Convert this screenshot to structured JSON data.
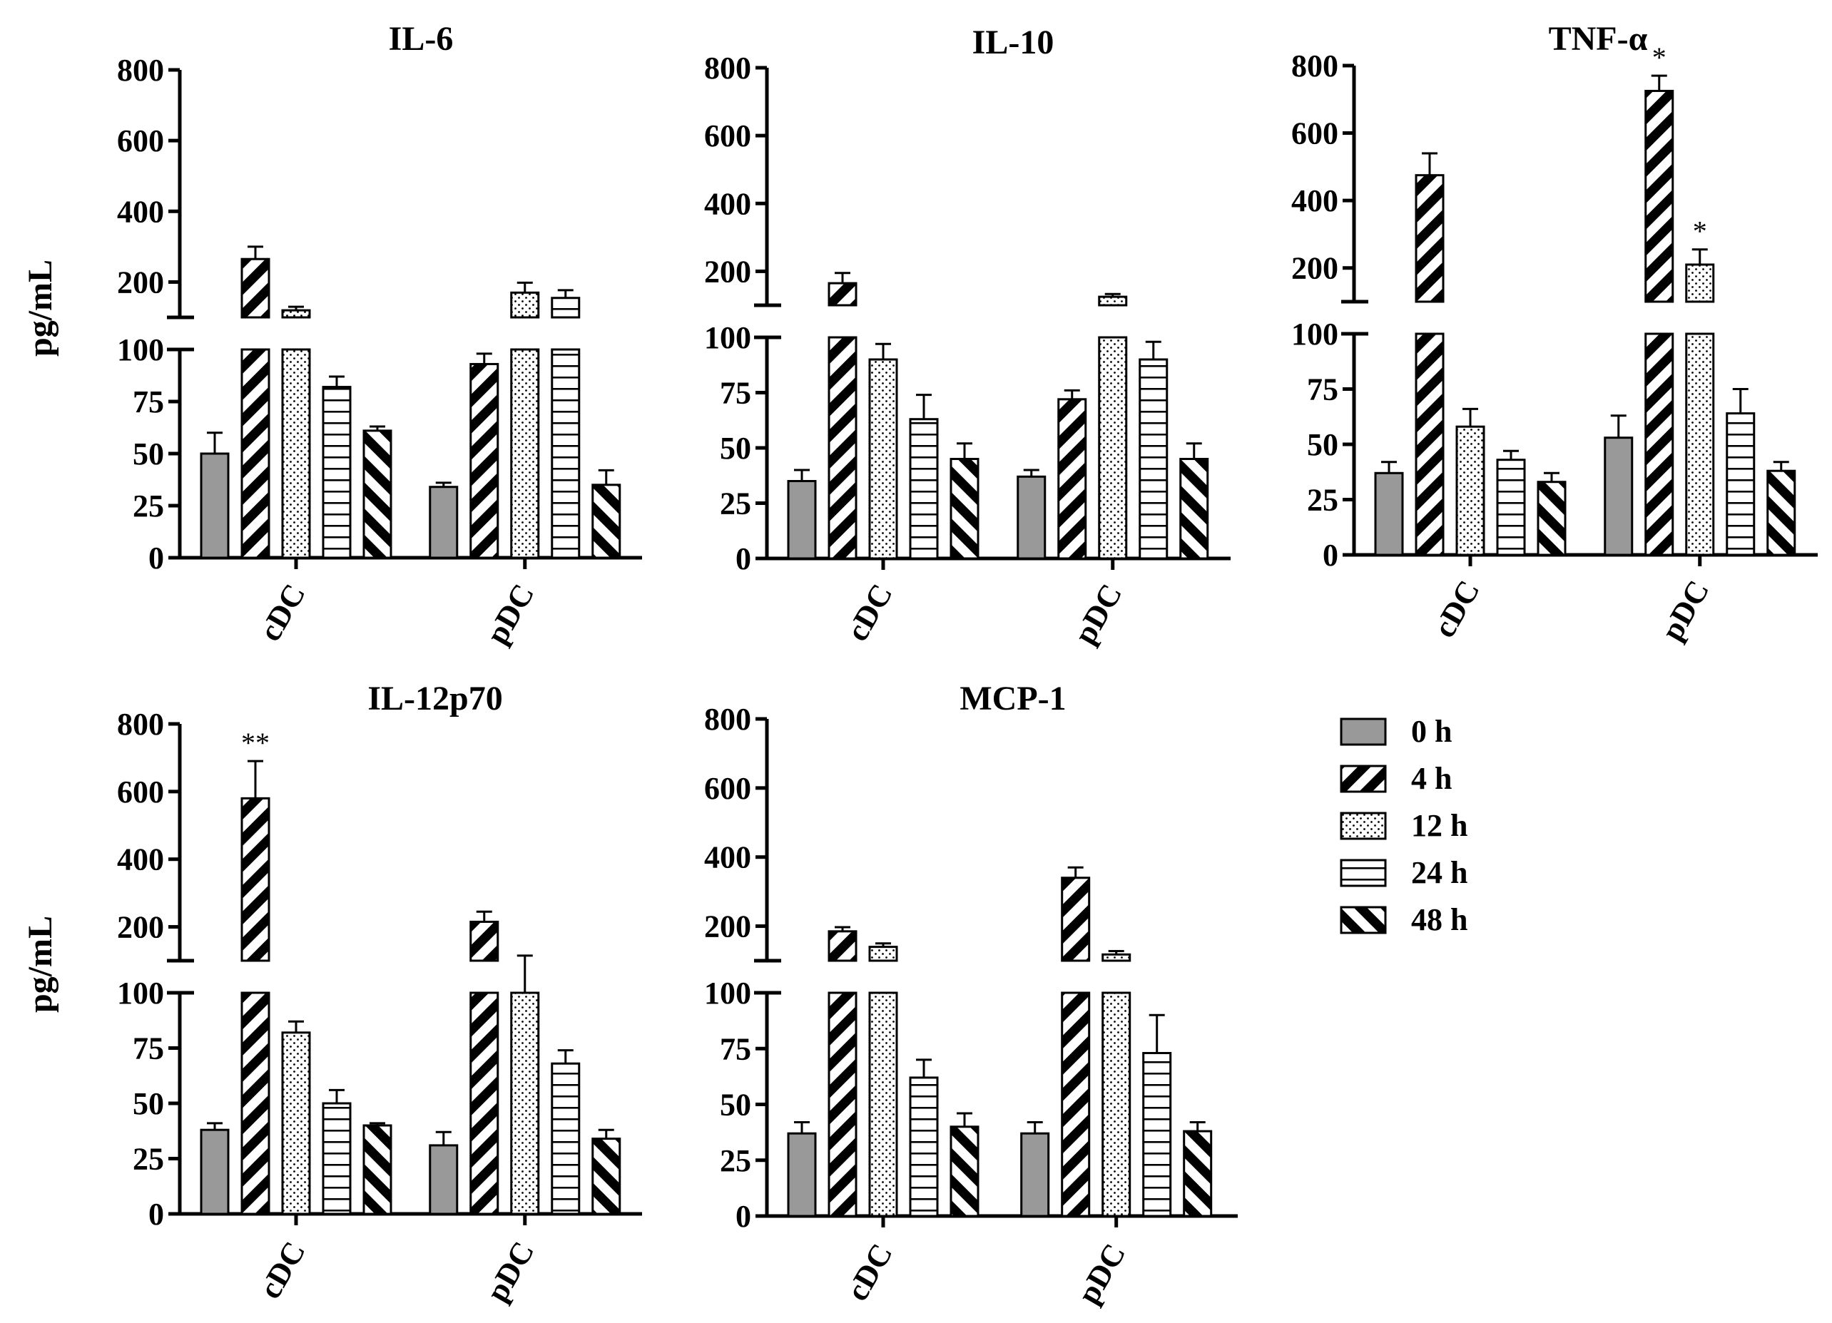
{
  "ylabel": "pg/mL",
  "colors": {
    "bar_0h": "#999999",
    "axis": "#000000",
    "background": "#ffffff"
  },
  "legend": [
    {
      "label": "0 h",
      "pattern": "solid-gray"
    },
    {
      "label": "4 h",
      "pattern": "wide-forward-diagonal"
    },
    {
      "label": "12 h",
      "pattern": "dots"
    },
    {
      "label": "24 h",
      "pattern": "horizontal-lines"
    },
    {
      "label": "48 h",
      "pattern": "wide-backward-diagonal"
    }
  ],
  "chart_data": [
    {
      "type": "bar",
      "title": "IL-6",
      "ylabel": "pg/mL",
      "categories": [
        "cDC",
        "pDC"
      ],
      "axis_break": {
        "lower_range": [
          0,
          100
        ],
        "upper_range": [
          100,
          800
        ]
      },
      "lower_ticks": [
        "0",
        "25",
        "50",
        "75",
        "100"
      ],
      "upper_ticks": [
        "200",
        "400",
        "600",
        "800"
      ],
      "series": [
        {
          "name": "0 h",
          "values": [
            50,
            34
          ],
          "errors": [
            10,
            2
          ]
        },
        {
          "name": "4 h",
          "values": [
            265,
            93
          ],
          "errors": [
            35,
            5
          ]
        },
        {
          "name": "12 h",
          "values": [
            120,
            170
          ],
          "errors": [
            10,
            28
          ]
        },
        {
          "name": "24 h",
          "values": [
            82,
            155
          ],
          "errors": [
            5,
            22
          ]
        },
        {
          "name": "48 h",
          "values": [
            61,
            35
          ],
          "errors": [
            2,
            7
          ]
        }
      ],
      "significance": []
    },
    {
      "type": "bar",
      "title": "IL-10",
      "ylabel": "",
      "categories": [
        "cDC",
        "pDC"
      ],
      "axis_break": {
        "lower_range": [
          0,
          100
        ],
        "upper_range": [
          100,
          800
        ]
      },
      "lower_ticks": [
        "0",
        "25",
        "50",
        "75",
        "100"
      ],
      "upper_ticks": [
        "200",
        "400",
        "600",
        "800"
      ],
      "series": [
        {
          "name": "0 h",
          "values": [
            35,
            37
          ],
          "errors": [
            5,
            3
          ]
        },
        {
          "name": "4 h",
          "values": [
            165,
            72
          ],
          "errors": [
            30,
            4
          ]
        },
        {
          "name": "12 h",
          "values": [
            90,
            125
          ],
          "errors": [
            7,
            8
          ]
        },
        {
          "name": "24 h",
          "values": [
            63,
            90
          ],
          "errors": [
            11,
            8
          ]
        },
        {
          "name": "48 h",
          "values": [
            45,
            45
          ],
          "errors": [
            7,
            7
          ]
        }
      ],
      "significance": []
    },
    {
      "type": "bar",
      "title": "TNF-α",
      "ylabel": "",
      "categories": [
        "cDC",
        "pDC"
      ],
      "axis_break": {
        "lower_range": [
          0,
          100
        ],
        "upper_range": [
          100,
          800
        ]
      },
      "lower_ticks": [
        "0",
        "25",
        "50",
        "75",
        "100"
      ],
      "upper_ticks": [
        "200",
        "400",
        "600",
        "800"
      ],
      "series": [
        {
          "name": "0 h",
          "values": [
            37,
            53
          ],
          "errors": [
            5,
            10
          ]
        },
        {
          "name": "4 h",
          "values": [
            475,
            725
          ],
          "errors": [
            65,
            45
          ]
        },
        {
          "name": "12 h",
          "values": [
            58,
            210
          ],
          "errors": [
            8,
            45
          ]
        },
        {
          "name": "24 h",
          "values": [
            43,
            64
          ],
          "errors": [
            4,
            11
          ]
        },
        {
          "name": "48 h",
          "values": [
            33,
            38
          ],
          "errors": [
            4,
            4
          ]
        }
      ],
      "significance": [
        {
          "label": "*",
          "category": "pDC",
          "series": "4 h"
        },
        {
          "label": "*",
          "category": "pDC",
          "series": "12 h"
        }
      ]
    },
    {
      "type": "bar",
      "title": "IL-12p70",
      "ylabel": "pg/mL",
      "categories": [
        "cDC",
        "pDC"
      ],
      "axis_break": {
        "lower_range": [
          0,
          100
        ],
        "upper_range": [
          100,
          800
        ]
      },
      "lower_ticks": [
        "0",
        "25",
        "50",
        "75",
        "100"
      ],
      "upper_ticks": [
        "200",
        "400",
        "600",
        "800"
      ],
      "series": [
        {
          "name": "0 h",
          "values": [
            38,
            31
          ],
          "errors": [
            3,
            6
          ]
        },
        {
          "name": "4 h",
          "values": [
            580,
            215
          ],
          "errors": [
            110,
            30
          ]
        },
        {
          "name": "12 h",
          "values": [
            82,
            100
          ],
          "errors": [
            5,
            15
          ]
        },
        {
          "name": "24 h",
          "values": [
            50,
            68
          ],
          "errors": [
            6,
            6
          ]
        },
        {
          "name": "48 h",
          "values": [
            40,
            34
          ],
          "errors": [
            1,
            4
          ]
        }
      ],
      "significance": [
        {
          "label": "**",
          "category": "cDC",
          "series": "4 h"
        }
      ]
    },
    {
      "type": "bar",
      "title": "MCP-1",
      "ylabel": "",
      "categories": [
        "cDC",
        "pDC"
      ],
      "axis_break": {
        "lower_range": [
          0,
          100
        ],
        "upper_range": [
          100,
          800
        ]
      },
      "lower_ticks": [
        "0",
        "25",
        "50",
        "75",
        "100"
      ],
      "upper_ticks": [
        "200",
        "400",
        "600",
        "800"
      ],
      "series": [
        {
          "name": "0 h",
          "values": [
            37,
            37
          ],
          "errors": [
            5,
            5
          ]
        },
        {
          "name": "4 h",
          "values": [
            185,
            340
          ],
          "errors": [
            12,
            30
          ]
        },
        {
          "name": "12 h",
          "values": [
            140,
            118
          ],
          "errors": [
            10,
            10
          ]
        },
        {
          "name": "24 h",
          "values": [
            62,
            73
          ],
          "errors": [
            8,
            17
          ]
        },
        {
          "name": "48 h",
          "values": [
            40,
            38
          ],
          "errors": [
            6,
            4
          ]
        }
      ],
      "significance": []
    }
  ]
}
